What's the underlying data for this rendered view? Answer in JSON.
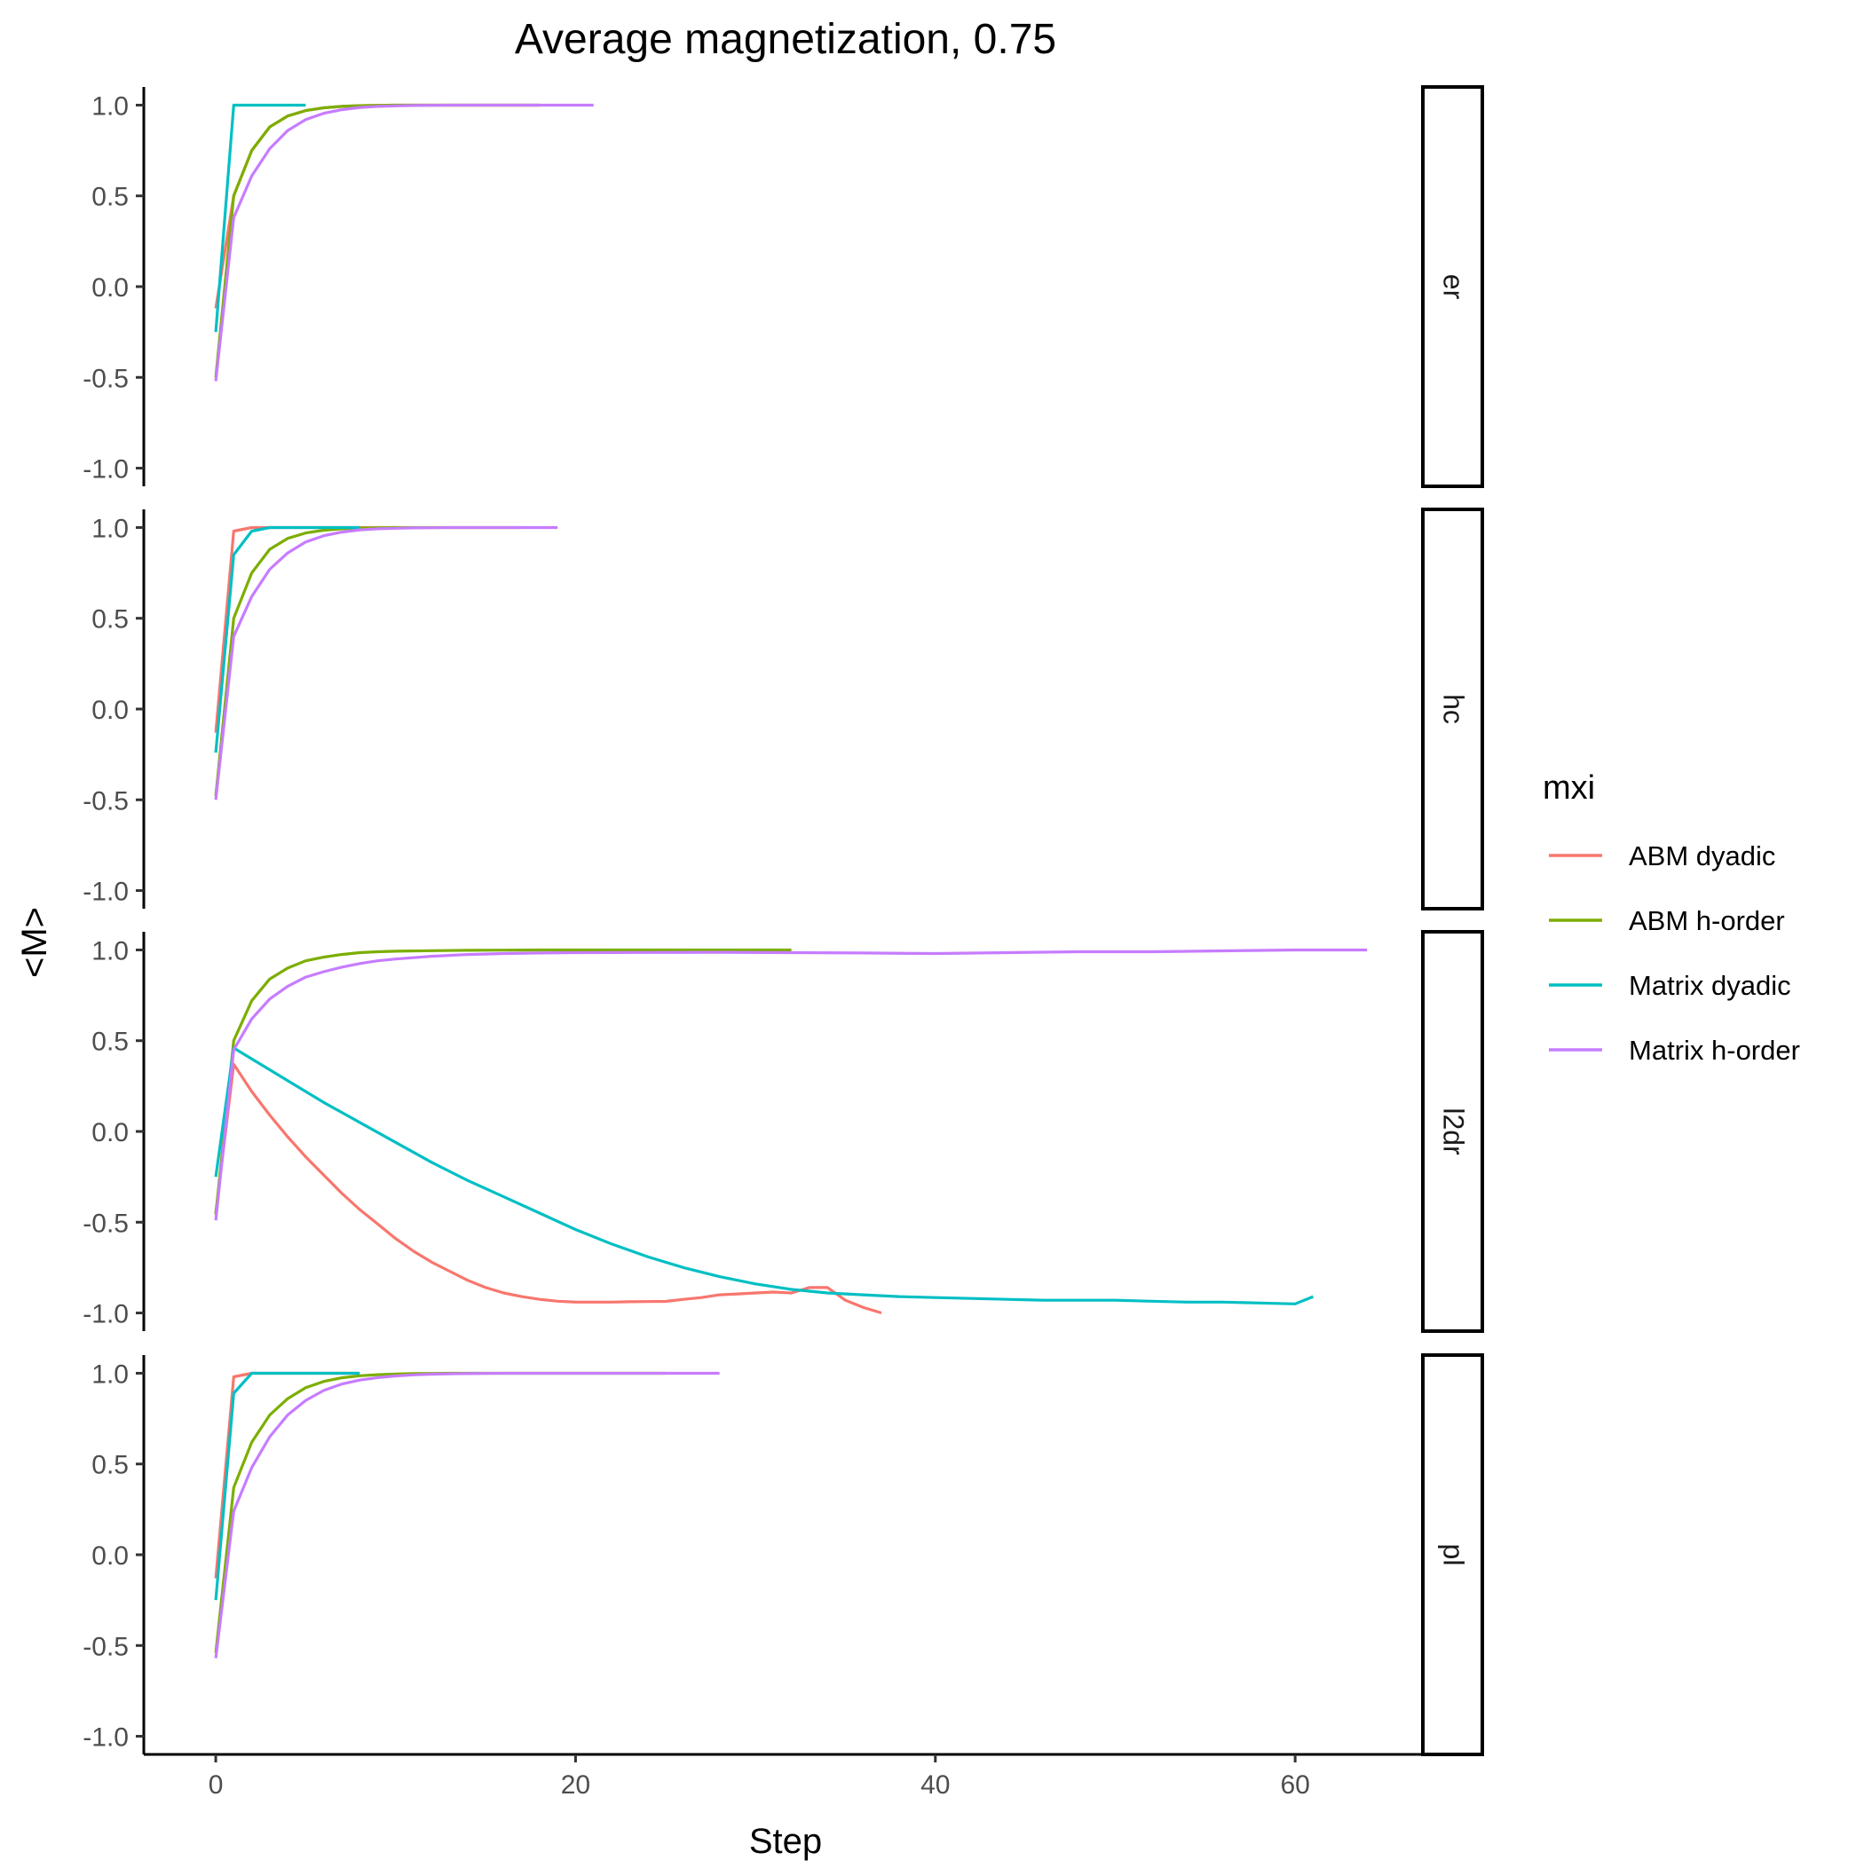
{
  "chart_data": {
    "type": "line",
    "title": "Average magnetization, 0.75",
    "xlabel": "Step",
    "ylabel": "<M>",
    "xlim": [
      -4,
      67
    ],
    "ylim": [
      -1.1,
      1.1
    ],
    "x_ticks": [
      0,
      20,
      40,
      60
    ],
    "y_ticks": [
      -1.0,
      -0.5,
      0.0,
      0.5,
      1.0
    ],
    "y_tick_labels": [
      "-1.0",
      "-0.5",
      "0.0",
      "0.5",
      "1.0"
    ],
    "grid": false,
    "legend": {
      "title": "mxi",
      "position": "right",
      "entries": [
        "ABM dyadic",
        "ABM h-order",
        "Matrix dyadic",
        "Matrix h-order"
      ]
    },
    "colors": {
      "ABM dyadic": "#F8766D",
      "ABM h-order": "#7CAE00",
      "Matrix dyadic": "#00BFC4",
      "Matrix h-order": "#C77CFF"
    },
    "panels": [
      {
        "strip": "er",
        "series": [
          {
            "name": "ABM dyadic",
            "x": [
              0,
              1,
              2,
              3,
              4,
              5,
              6,
              7,
              8,
              9,
              10,
              11,
              12,
              13,
              14,
              15,
              16,
              17,
              18
            ],
            "y": [
              -0.12,
              0.5,
              0.75,
              0.88,
              0.94,
              0.97,
              0.985,
              0.993,
              0.997,
              0.999,
              1.0,
              1.0,
              1.0,
              1.0,
              1.0,
              1.0,
              1.0,
              1.0,
              1.0
            ]
          },
          {
            "name": "ABM h-order",
            "x": [
              0,
              1,
              2,
              3,
              4,
              5,
              6,
              7,
              8,
              9,
              10,
              11,
              12,
              13,
              14,
              15,
              16,
              17,
              18
            ],
            "y": [
              -0.5,
              0.5,
              0.75,
              0.88,
              0.94,
              0.97,
              0.985,
              0.993,
              0.997,
              0.999,
              1.0,
              1.0,
              1.0,
              1.0,
              1.0,
              1.0,
              1.0,
              1.0,
              1.0
            ]
          },
          {
            "name": "Matrix dyadic",
            "x": [
              0,
              1,
              2,
              3,
              4,
              5
            ],
            "y": [
              -0.25,
              1.0,
              1.0,
              1.0,
              1.0,
              1.0
            ]
          },
          {
            "name": "Matrix h-order",
            "x": [
              0,
              1,
              2,
              3,
              4,
              5,
              6,
              7,
              8,
              9,
              10,
              11,
              12,
              13,
              14,
              15,
              16,
              17,
              18,
              19,
              20,
              21
            ],
            "y": [
              -0.52,
              0.38,
              0.61,
              0.76,
              0.86,
              0.92,
              0.955,
              0.975,
              0.987,
              0.993,
              0.996,
              0.998,
              0.999,
              1.0,
              1.0,
              1.0,
              1.0,
              1.0,
              1.0,
              1.0,
              1.0,
              1.0
            ]
          }
        ]
      },
      {
        "strip": "hc",
        "series": [
          {
            "name": "ABM dyadic",
            "x": [
              0,
              1,
              2,
              3,
              4,
              5,
              6,
              7,
              8,
              9,
              10
            ],
            "y": [
              -0.13,
              0.98,
              1.0,
              1.0,
              1.0,
              1.0,
              1.0,
              1.0,
              1.0,
              1.0,
              1.0
            ]
          },
          {
            "name": "ABM h-order",
            "x": [
              0,
              1,
              2,
              3,
              4,
              5,
              6,
              7,
              8,
              9,
              10,
              11,
              12,
              13,
              14,
              15,
              16,
              17
            ],
            "y": [
              -0.48,
              0.5,
              0.75,
              0.88,
              0.94,
              0.97,
              0.985,
              0.993,
              0.997,
              0.999,
              1.0,
              1.0,
              1.0,
              1.0,
              1.0,
              1.0,
              1.0,
              1.0
            ]
          },
          {
            "name": "Matrix dyadic",
            "x": [
              0,
              1,
              2,
              3,
              4,
              5,
              6,
              7,
              8
            ],
            "y": [
              -0.24,
              0.85,
              0.98,
              1.0,
              1.0,
              1.0,
              1.0,
              1.0,
              1.0
            ]
          },
          {
            "name": "Matrix h-order",
            "x": [
              0,
              1,
              2,
              3,
              4,
              5,
              6,
              7,
              8,
              9,
              10,
              11,
              12,
              13,
              14,
              15,
              16,
              17,
              18,
              19
            ],
            "y": [
              -0.5,
              0.4,
              0.62,
              0.77,
              0.86,
              0.92,
              0.955,
              0.975,
              0.987,
              0.993,
              0.996,
              0.998,
              0.999,
              1.0,
              1.0,
              1.0,
              1.0,
              1.0,
              1.0,
              1.0
            ]
          }
        ]
      },
      {
        "strip": "l2dr",
        "series": [
          {
            "name": "ABM dyadic",
            "x": [
              0,
              1,
              2,
              3,
              4,
              5,
              6,
              7,
              8,
              9,
              10,
              11,
              12,
              13,
              14,
              15,
              16,
              17,
              18,
              19,
              20,
              21,
              22,
              23,
              24,
              25,
              26,
              27,
              28,
              29,
              30,
              31,
              32,
              33,
              34,
              35,
              36,
              37
            ],
            "y": [
              -0.45,
              0.37,
              0.22,
              0.09,
              -0.03,
              -0.14,
              -0.24,
              -0.34,
              -0.43,
              -0.51,
              -0.59,
              -0.66,
              -0.72,
              -0.77,
              -0.82,
              -0.86,
              -0.89,
              -0.91,
              -0.925,
              -0.935,
              -0.94,
              -0.94,
              -0.94,
              -0.938,
              -0.937,
              -0.936,
              -0.925,
              -0.915,
              -0.9,
              -0.895,
              -0.89,
              -0.885,
              -0.89,
              -0.86,
              -0.86,
              -0.93,
              -0.97,
              -1.0
            ]
          },
          {
            "name": "ABM h-order",
            "x": [
              0,
              1,
              2,
              3,
              4,
              5,
              6,
              7,
              8,
              9,
              10,
              12,
              14,
              16,
              18,
              20,
              22,
              24,
              26,
              28,
              30,
              32
            ],
            "y": [
              -0.46,
              0.5,
              0.72,
              0.84,
              0.9,
              0.94,
              0.96,
              0.975,
              0.985,
              0.99,
              0.993,
              0.996,
              0.998,
              0.999,
              1.0,
              1.0,
              1.0,
              1.0,
              1.0,
              1.0,
              1.0,
              1.0
            ]
          },
          {
            "name": "Matrix dyadic",
            "x": [
              0,
              1,
              2,
              4,
              6,
              8,
              10,
              12,
              14,
              16,
              18,
              20,
              22,
              24,
              26,
              28,
              30,
              32,
              34,
              36,
              38,
              40,
              42,
              44,
              46,
              48,
              50,
              52,
              54,
              56,
              58,
              60,
              61
            ],
            "y": [
              -0.25,
              0.46,
              0.4,
              0.28,
              0.16,
              0.05,
              -0.06,
              -0.17,
              -0.27,
              -0.36,
              -0.45,
              -0.54,
              -0.62,
              -0.69,
              -0.75,
              -0.8,
              -0.84,
              -0.87,
              -0.89,
              -0.9,
              -0.91,
              -0.915,
              -0.92,
              -0.925,
              -0.93,
              -0.93,
              -0.93,
              -0.935,
              -0.94,
              -0.94,
              -0.945,
              -0.95,
              -0.91
            ]
          },
          {
            "name": "Matrix h-order",
            "x": [
              0,
              1,
              2,
              3,
              4,
              5,
              6,
              7,
              8,
              9,
              10,
              12,
              14,
              16,
              18,
              20,
              24,
              28,
              32,
              36,
              40,
              44,
              48,
              52,
              56,
              60,
              64
            ],
            "y": [
              -0.49,
              0.45,
              0.62,
              0.73,
              0.8,
              0.85,
              0.88,
              0.905,
              0.925,
              0.94,
              0.95,
              0.965,
              0.975,
              0.98,
              0.983,
              0.985,
              0.986,
              0.987,
              0.985,
              0.983,
              0.98,
              0.985,
              0.99,
              0.99,
              0.995,
              1.0,
              1.0
            ]
          }
        ]
      },
      {
        "strip": "pl",
        "series": [
          {
            "name": "ABM dyadic",
            "x": [
              0,
              1,
              2,
              3,
              4,
              5,
              6,
              7,
              8
            ],
            "y": [
              -0.13,
              0.98,
              1.0,
              1.0,
              1.0,
              1.0,
              1.0,
              1.0,
              1.0
            ]
          },
          {
            "name": "ABM h-order",
            "x": [
              0,
              1,
              2,
              3,
              4,
              5,
              6,
              7,
              8,
              9,
              10,
              11,
              12,
              13,
              14,
              15,
              16,
              17,
              18,
              19,
              20,
              21,
              22,
              23,
              24,
              25
            ],
            "y": [
              -0.54,
              0.37,
              0.62,
              0.77,
              0.86,
              0.92,
              0.955,
              0.975,
              0.986,
              0.992,
              0.996,
              0.998,
              0.999,
              1.0,
              1.0,
              1.0,
              1.0,
              1.0,
              1.0,
              1.0,
              1.0,
              1.0,
              1.0,
              1.0,
              1.0,
              1.0
            ]
          },
          {
            "name": "Matrix dyadic",
            "x": [
              0,
              1,
              2,
              3,
              4,
              5,
              6,
              7,
              8
            ],
            "y": [
              -0.25,
              0.89,
              1.0,
              1.0,
              1.0,
              1.0,
              1.0,
              1.0,
              1.0
            ]
          },
          {
            "name": "Matrix h-order",
            "x": [
              0,
              1,
              2,
              3,
              4,
              5,
              6,
              7,
              8,
              9,
              10,
              11,
              12,
              13,
              14,
              15,
              16,
              17,
              18,
              19,
              20,
              21,
              22,
              23,
              24,
              25,
              26,
              27,
              28
            ],
            "y": [
              -0.57,
              0.24,
              0.48,
              0.65,
              0.77,
              0.85,
              0.905,
              0.94,
              0.962,
              0.976,
              0.985,
              0.991,
              0.995,
              0.997,
              0.998,
              0.999,
              1.0,
              1.0,
              1.0,
              1.0,
              1.0,
              1.0,
              1.0,
              1.0,
              1.0,
              1.0,
              1.0,
              1.0,
              1.0
            ]
          }
        ]
      }
    ]
  }
}
